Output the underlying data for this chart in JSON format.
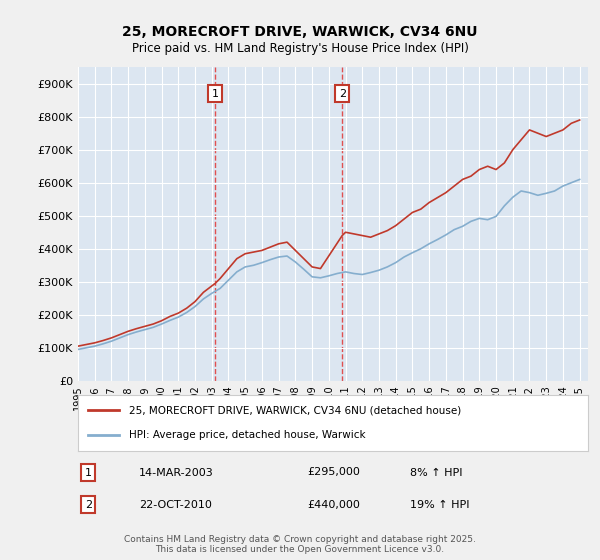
{
  "title": "25, MORECROFT DRIVE, WARWICK, CV34 6NU",
  "subtitle": "Price paid vs. HM Land Registry's House Price Index (HPI)",
  "red_label": "25, MORECROFT DRIVE, WARWICK, CV34 6NU (detached house)",
  "blue_label": "HPI: Average price, detached house, Warwick",
  "footer": "Contains HM Land Registry data © Crown copyright and database right 2025.\nThis data is licensed under the Open Government Licence v3.0.",
  "annotation1": {
    "num": "1",
    "date": "14-MAR-2003",
    "price": "£295,000",
    "hpi": "8% ↑ HPI",
    "x_year": 2003.2
  },
  "annotation2": {
    "num": "2",
    "date": "22-OCT-2010",
    "price": "£440,000",
    "hpi": "19% ↑ HPI",
    "x_year": 2010.8
  },
  "ylim": [
    0,
    950000
  ],
  "xlim_start": 1995,
  "xlim_end": 2025.5,
  "background_color": "#dce6f1",
  "plot_bg": "#dce6f1",
  "grid_color": "#ffffff",
  "red_line_color": "#c0392b",
  "blue_line_color": "#85aece",
  "vline_color": "#e05050",
  "shade_color": "#dce6f1",
  "yticks": [
    0,
    100000,
    200000,
    300000,
    400000,
    500000,
    600000,
    700000,
    800000,
    900000
  ],
  "ytick_labels": [
    "£0",
    "£100K",
    "£200K",
    "£300K",
    "£400K",
    "£500K",
    "£600K",
    "£700K",
    "£800K",
    "£900K"
  ],
  "xticks": [
    1995,
    1996,
    1997,
    1998,
    1999,
    2000,
    2001,
    2002,
    2003,
    2004,
    2005,
    2006,
    2007,
    2008,
    2009,
    2010,
    2011,
    2012,
    2013,
    2014,
    2015,
    2016,
    2017,
    2018,
    2019,
    2020,
    2021,
    2022,
    2023,
    2024,
    2025
  ],
  "red_x": [
    1995.0,
    1995.5,
    1996.0,
    1996.5,
    1997.0,
    1997.5,
    1998.0,
    1998.5,
    1999.0,
    1999.5,
    2000.0,
    2000.5,
    2001.0,
    2001.5,
    2002.0,
    2002.5,
    2003.2,
    2003.5,
    2004.0,
    2004.5,
    2005.0,
    2005.5,
    2006.0,
    2006.5,
    2007.0,
    2007.5,
    2008.0,
    2008.5,
    2009.0,
    2009.5,
    2010.8,
    2011.0,
    2011.5,
    2012.0,
    2012.5,
    2013.0,
    2013.5,
    2014.0,
    2014.5,
    2015.0,
    2015.5,
    2016.0,
    2016.5,
    2017.0,
    2017.5,
    2018.0,
    2018.5,
    2019.0,
    2019.5,
    2020.0,
    2020.5,
    2021.0,
    2021.5,
    2022.0,
    2022.5,
    2023.0,
    2023.5,
    2024.0,
    2024.5,
    2025.0
  ],
  "red_y": [
    105000,
    110000,
    115000,
    122000,
    130000,
    140000,
    150000,
    158000,
    165000,
    172000,
    182000,
    195000,
    205000,
    220000,
    240000,
    268000,
    295000,
    310000,
    340000,
    370000,
    385000,
    390000,
    395000,
    405000,
    415000,
    420000,
    395000,
    370000,
    345000,
    340000,
    440000,
    450000,
    445000,
    440000,
    435000,
    445000,
    455000,
    470000,
    490000,
    510000,
    520000,
    540000,
    555000,
    570000,
    590000,
    610000,
    620000,
    640000,
    650000,
    640000,
    660000,
    700000,
    730000,
    760000,
    750000,
    740000,
    750000,
    760000,
    780000,
    790000
  ],
  "blue_x": [
    1995.0,
    1995.5,
    1996.0,
    1996.5,
    1997.0,
    1997.5,
    1998.0,
    1998.5,
    1999.0,
    1999.5,
    2000.0,
    2000.5,
    2001.0,
    2001.5,
    2002.0,
    2002.5,
    2003.0,
    2003.5,
    2004.0,
    2004.5,
    2005.0,
    2005.5,
    2006.0,
    2006.5,
    2007.0,
    2007.5,
    2008.0,
    2008.5,
    2009.0,
    2009.5,
    2010.0,
    2010.5,
    2011.0,
    2011.5,
    2012.0,
    2012.5,
    2013.0,
    2013.5,
    2014.0,
    2014.5,
    2015.0,
    2015.5,
    2016.0,
    2016.5,
    2017.0,
    2017.5,
    2018.0,
    2018.5,
    2019.0,
    2019.5,
    2020.0,
    2020.5,
    2021.0,
    2021.5,
    2022.0,
    2022.5,
    2023.0,
    2023.5,
    2024.0,
    2024.5,
    2025.0
  ],
  "blue_y": [
    95000,
    100000,
    105000,
    112000,
    120000,
    130000,
    140000,
    148000,
    155000,
    162000,
    172000,
    183000,
    193000,
    207000,
    225000,
    248000,
    265000,
    280000,
    305000,
    330000,
    345000,
    350000,
    358000,
    367000,
    375000,
    378000,
    360000,
    338000,
    315000,
    312000,
    318000,
    325000,
    330000,
    325000,
    322000,
    328000,
    335000,
    345000,
    358000,
    375000,
    388000,
    400000,
    415000,
    428000,
    442000,
    458000,
    468000,
    483000,
    492000,
    488000,
    498000,
    530000,
    556000,
    575000,
    570000,
    562000,
    568000,
    575000,
    590000,
    600000,
    610000
  ]
}
